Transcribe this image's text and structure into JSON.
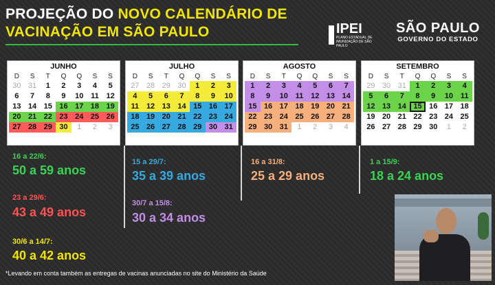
{
  "title": {
    "part1": "PROJEÇÃO DO ",
    "part2": "NOVO CALENDÁRIO DE",
    "part3": "VACINAÇÃO EM SÃO PAULO"
  },
  "logos": {
    "ipei": "IPEI",
    "ipei_sub": "PLANO ESTADUAL DE IMUNIZAÇÃO DE SÃO PAULO",
    "sp_line1": "SÃO PAULO",
    "sp_line2": "GOVERNO DO ESTADO"
  },
  "colors": {
    "green": "#6cd44a",
    "red": "#ff5b5b",
    "yellow": "#f5ec3a",
    "blue": "#36a9e1",
    "purple": "#c28ee8",
    "orange": "#f7b07c",
    "title_yellow": "#f2e600"
  },
  "weekdays": [
    "D",
    "S",
    "T",
    "Q",
    "Q",
    "S",
    "S"
  ],
  "calendars": [
    {
      "name": "JUNHO",
      "weeks": [
        [
          [
            "30",
            "muted"
          ],
          [
            "31",
            "muted"
          ],
          [
            "1",
            ""
          ],
          [
            "2",
            ""
          ],
          [
            "3",
            ""
          ],
          [
            "4",
            ""
          ],
          [
            "5",
            ""
          ]
        ],
        [
          [
            "6",
            ""
          ],
          [
            "7",
            ""
          ],
          [
            "8",
            ""
          ],
          [
            "9",
            ""
          ],
          [
            "10",
            ""
          ],
          [
            "11",
            ""
          ],
          [
            "12",
            ""
          ]
        ],
        [
          [
            "13",
            ""
          ],
          [
            "14",
            ""
          ],
          [
            "15",
            ""
          ],
          [
            "16",
            "green"
          ],
          [
            "17",
            "green"
          ],
          [
            "18",
            "green"
          ],
          [
            "19",
            "green"
          ]
        ],
        [
          [
            "20",
            "green"
          ],
          [
            "21",
            "green"
          ],
          [
            "22",
            "green"
          ],
          [
            "23",
            "red"
          ],
          [
            "24",
            "red"
          ],
          [
            "25",
            "red"
          ],
          [
            "26",
            "red"
          ]
        ],
        [
          [
            "27",
            "red"
          ],
          [
            "28",
            "red"
          ],
          [
            "29",
            "red"
          ],
          [
            "30",
            "yellow"
          ],
          [
            "1",
            "muted"
          ],
          [
            "2",
            "muted"
          ],
          [
            "3",
            "muted"
          ]
        ]
      ]
    },
    {
      "name": "JULHO",
      "weeks": [
        [
          [
            "27",
            "muted"
          ],
          [
            "28",
            "muted"
          ],
          [
            "29",
            "muted"
          ],
          [
            "30",
            "muted"
          ],
          [
            "1",
            "yellow"
          ],
          [
            "2",
            "yellow"
          ],
          [
            "3",
            "yellow"
          ]
        ],
        [
          [
            "4",
            "yellow"
          ],
          [
            "5",
            "yellow"
          ],
          [
            "6",
            "yellow"
          ],
          [
            "7",
            "yellow"
          ],
          [
            "8",
            "yellow"
          ],
          [
            "9",
            "yellow"
          ],
          [
            "10",
            "yellow"
          ]
        ],
        [
          [
            "11",
            "yellow"
          ],
          [
            "12",
            "yellow"
          ],
          [
            "13",
            "yellow"
          ],
          [
            "14",
            "yellow"
          ],
          [
            "15",
            "blue"
          ],
          [
            "16",
            "blue"
          ],
          [
            "17",
            "blue"
          ]
        ],
        [
          [
            "18",
            "blue"
          ],
          [
            "19",
            "blue"
          ],
          [
            "20",
            "blue"
          ],
          [
            "21",
            "blue"
          ],
          [
            "22",
            "blue"
          ],
          [
            "23",
            "blue"
          ],
          [
            "24",
            "blue"
          ]
        ],
        [
          [
            "25",
            "blue"
          ],
          [
            "26",
            "blue"
          ],
          [
            "27",
            "blue"
          ],
          [
            "28",
            "blue"
          ],
          [
            "29",
            "blue"
          ],
          [
            "30",
            "purple"
          ],
          [
            "31",
            "purple"
          ]
        ]
      ]
    },
    {
      "name": "AGOSTO",
      "weeks": [
        [
          [
            "1",
            "purple"
          ],
          [
            "2",
            "purple"
          ],
          [
            "3",
            "purple"
          ],
          [
            "4",
            "purple"
          ],
          [
            "5",
            "purple"
          ],
          [
            "6",
            "purple"
          ],
          [
            "7",
            "purple"
          ]
        ],
        [
          [
            "8",
            "purple"
          ],
          [
            "9",
            "purple"
          ],
          [
            "10",
            "purple"
          ],
          [
            "11",
            "purple"
          ],
          [
            "12",
            "purple"
          ],
          [
            "13",
            "purple"
          ],
          [
            "14",
            "purple"
          ]
        ],
        [
          [
            "15",
            "purple"
          ],
          [
            "16",
            "orange"
          ],
          [
            "17",
            "orange"
          ],
          [
            "18",
            "orange"
          ],
          [
            "19",
            "orange"
          ],
          [
            "20",
            "orange"
          ],
          [
            "21",
            "orange"
          ]
        ],
        [
          [
            "22",
            "orange"
          ],
          [
            "23",
            "orange"
          ],
          [
            "24",
            "orange"
          ],
          [
            "25",
            "orange"
          ],
          [
            "26",
            "orange"
          ],
          [
            "27",
            "orange"
          ],
          [
            "28",
            "orange"
          ]
        ],
        [
          [
            "29",
            "orange"
          ],
          [
            "30",
            "orange"
          ],
          [
            "31",
            "orange"
          ],
          [
            "1",
            "muted"
          ],
          [
            "2",
            "muted"
          ],
          [
            "3",
            "muted"
          ],
          [
            "4",
            "muted"
          ]
        ]
      ]
    },
    {
      "name": "SETEMBRO",
      "weeks": [
        [
          [
            "29",
            "muted"
          ],
          [
            "30",
            "muted"
          ],
          [
            "31",
            "muted"
          ],
          [
            "1",
            "green"
          ],
          [
            "2",
            "green"
          ],
          [
            "3",
            "green"
          ],
          [
            "4",
            "green"
          ]
        ],
        [
          [
            "5",
            "green"
          ],
          [
            "6",
            "green"
          ],
          [
            "7",
            "green"
          ],
          [
            "8",
            "green"
          ],
          [
            "9",
            "green"
          ],
          [
            "10",
            "green"
          ],
          [
            "11",
            "green"
          ]
        ],
        [
          [
            "12",
            "green"
          ],
          [
            "13",
            "green"
          ],
          [
            "14",
            "green"
          ],
          [
            "15",
            "green today"
          ],
          [
            "16",
            ""
          ],
          [
            "17",
            ""
          ],
          [
            "18",
            ""
          ]
        ],
        [
          [
            "19",
            ""
          ],
          [
            "20",
            ""
          ],
          [
            "21",
            ""
          ],
          [
            "22",
            ""
          ],
          [
            "23",
            ""
          ],
          [
            "24",
            ""
          ],
          [
            "25",
            ""
          ]
        ],
        [
          [
            "26",
            ""
          ],
          [
            "27",
            ""
          ],
          [
            "28",
            ""
          ],
          [
            "29",
            ""
          ],
          [
            "30",
            ""
          ],
          [
            "1",
            "muted"
          ],
          [
            "2",
            "muted"
          ]
        ]
      ]
    }
  ],
  "groups": {
    "g1_dates": "16 a 22/6:",
    "g1_ages": "50 a 59 anos",
    "g2_dates": "23 a 29/6:",
    "g2_ages": "43 a 49 anos",
    "g3_dates": "30/6 a 14/7:",
    "g3_ages": "40 a 42 anos",
    "g4_dates": "15 a 29/7:",
    "g4_ages": "35 a 39 anos",
    "g5_dates": "30/7 a 15/8:",
    "g5_ages": "30 a 34 anos",
    "g6_dates": "16 a 31/8:",
    "g6_ages": "25 a 29 anos",
    "g7_dates": "1 a 15/9:",
    "g7_ages": "18 a 24 anos"
  },
  "footnote": "*Levando em conta também as entregas de vacinas anunciadas no site do Ministério da Saúde"
}
